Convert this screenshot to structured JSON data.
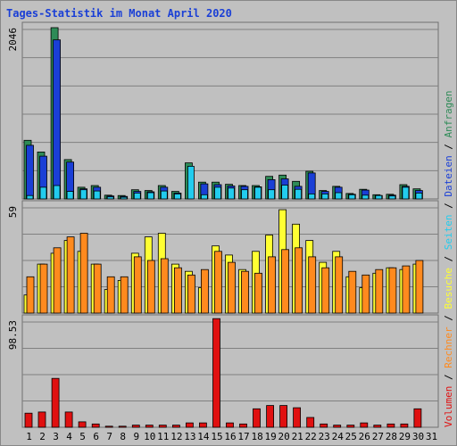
{
  "title": "Tages-Statistik im Monat April 2020",
  "colors": {
    "background": "#c0c0c0",
    "anfragen": "#2e8b57",
    "dateien": "#1a3fd6",
    "seiten": "#22ccee",
    "besuche": "#ffff33",
    "rechner": "#ff8a1e",
    "volumen": "#e01010",
    "weekend_day": "#208060"
  },
  "chart_data": {
    "type": "bar",
    "title": "Tages-Statistik im Monat April 2020",
    "categories": [
      "1",
      "2",
      "3",
      "4",
      "5",
      "6",
      "7",
      "8",
      "9",
      "10",
      "11",
      "12",
      "13",
      "14",
      "15",
      "16",
      "17",
      "18",
      "19",
      "20",
      "21",
      "22",
      "23",
      "24",
      "25",
      "26",
      "27",
      "28",
      "29",
      "30",
      "31"
    ],
    "weekend_days": [
      "4",
      "5",
      "11",
      "12",
      "18",
      "19",
      "25",
      "26"
    ],
    "legend_vertical": [
      "Anfragen",
      "Dateien",
      "Seiten",
      "Besuche",
      "Rechner",
      "Volumen"
    ],
    "legend_separator": "/",
    "panels": [
      {
        "name": "top",
        "ymax": 2046,
        "ymax_label": "2046",
        "series": [
          {
            "name": "Anfragen",
            "values": [
              700,
              560,
              2046,
              470,
              140,
              160,
              45,
              40,
              110,
              100,
              160,
              90,
              430,
              200,
              200,
              175,
              160,
              160,
              270,
              285,
              210,
              330,
              100,
              150,
              65,
              115,
              50,
              55,
              170,
              120,
              0
            ]
          },
          {
            "name": "Dateien",
            "values": [
              640,
              510,
              1900,
              440,
              120,
              140,
              35,
              30,
              90,
              85,
              140,
              70,
              0,
              180,
              170,
              155,
              150,
              145,
              230,
              240,
              150,
              310,
              90,
              140,
              55,
              105,
              40,
              45,
              150,
              100,
              0
            ]
          },
          {
            "name": "Seiten",
            "values": [
              40,
              140,
              160,
              90,
              110,
              95,
              25,
              20,
              70,
              75,
              95,
              60,
              390,
              50,
              140,
              130,
              110,
              140,
              110,
              165,
              115,
              60,
              60,
              75,
              50,
              45,
              40,
              35,
              140,
              70,
              0
            ]
          }
        ]
      },
      {
        "name": "middle",
        "ymax": 59,
        "ymax_label": "59",
        "series": [
          {
            "name": "Besuche",
            "values": [
              10,
              27,
              33,
              40,
              34,
              27,
              13,
              18,
              33,
              42,
              44,
              27,
              23,
              14,
              37,
              32,
              24,
              34,
              43,
              57,
              49,
              40,
              28,
              34,
              20,
              14,
              22,
              25,
              24,
              27,
              0
            ]
          },
          {
            "name": "Rechner",
            "values": [
              20,
              27,
              36,
              42,
              44,
              27,
              20,
              20,
              31,
              29,
              30,
              25,
              21,
              24,
              34,
              28,
              23,
              22,
              31,
              35,
              36,
              31,
              25,
              31,
              23,
              21,
              24,
              25,
              26,
              29,
              0
            ]
          }
        ]
      },
      {
        "name": "bottom",
        "ymax": 98.53,
        "ymax_label": "98.53",
        "series": [
          {
            "name": "Volumen",
            "values": [
              13,
              14,
              45,
              14,
              5,
              3,
              1,
              1,
              2,
              2,
              2,
              2,
              4,
              4,
              100,
              4,
              3,
              17,
              20,
              20,
              18,
              9,
              3,
              2,
              2,
              4,
              2,
              3,
              3,
              17,
              0
            ]
          }
        ]
      }
    ]
  }
}
